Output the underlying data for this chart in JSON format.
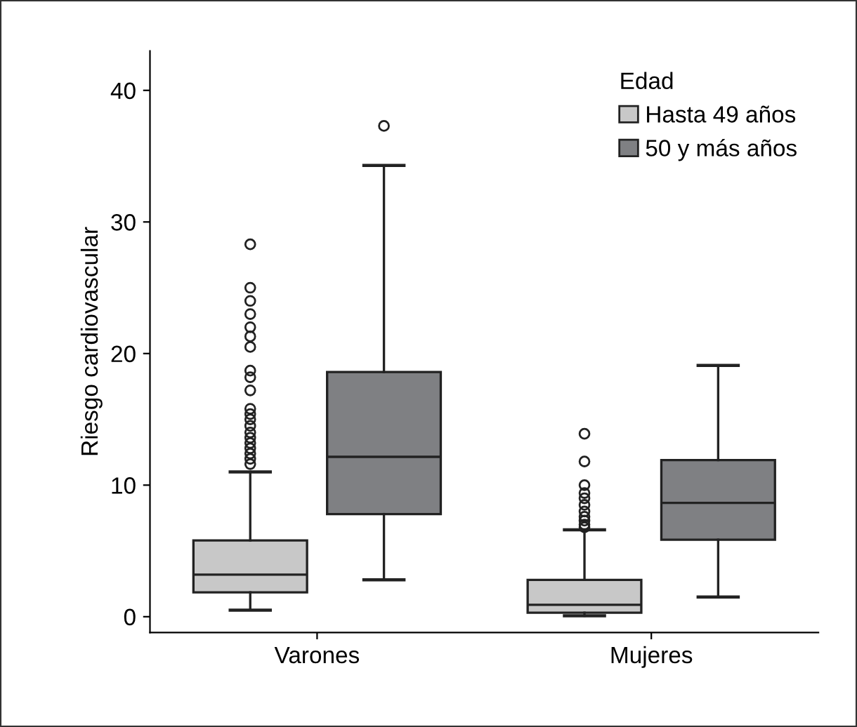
{
  "chart_data": {
    "type": "box",
    "ylabel": "Riesgo cardiovascular",
    "legend_title": "Edad",
    "legend": "top right",
    "grid": false,
    "categories": [
      "Varones",
      "Mujeres"
    ],
    "ylim": [
      -1.2,
      43
    ],
    "yticks": [
      0,
      10,
      20,
      30,
      40
    ],
    "series": [
      {
        "name": "Hasta 49 años",
        "color": "#c8c8c8",
        "boxes": [
          {
            "low": 0.5,
            "q1": 1.85,
            "median": 3.2,
            "q3": 5.8,
            "high": 11.0,
            "outliers": [
              11.6,
              12.0,
              12.4,
              12.8,
              13.2,
              13.6,
              14.0,
              14.5,
              15.0,
              15.4,
              15.8,
              17.2,
              18.2,
              18.7,
              20.5,
              21.3,
              22.0,
              23.0,
              24.0,
              25.0,
              28.3
            ]
          },
          {
            "low": 0.07,
            "q1": 0.3,
            "median": 0.9,
            "q3": 2.8,
            "high": 6.6,
            "outliers": [
              6.8,
              7.0,
              7.3,
              7.6,
              8.0,
              8.5,
              9.0,
              9.4,
              10.0,
              11.8,
              13.9
            ]
          }
        ]
      },
      {
        "name": "50 y más años",
        "color": "#7f8083",
        "boxes": [
          {
            "low": 2.8,
            "q1": 7.8,
            "median": 12.15,
            "q3": 18.6,
            "high": 34.3,
            "outliers": [
              37.3
            ]
          },
          {
            "low": 1.5,
            "q1": 5.85,
            "median": 8.65,
            "q3": 11.9,
            "high": 19.1
          }
        ]
      }
    ]
  }
}
